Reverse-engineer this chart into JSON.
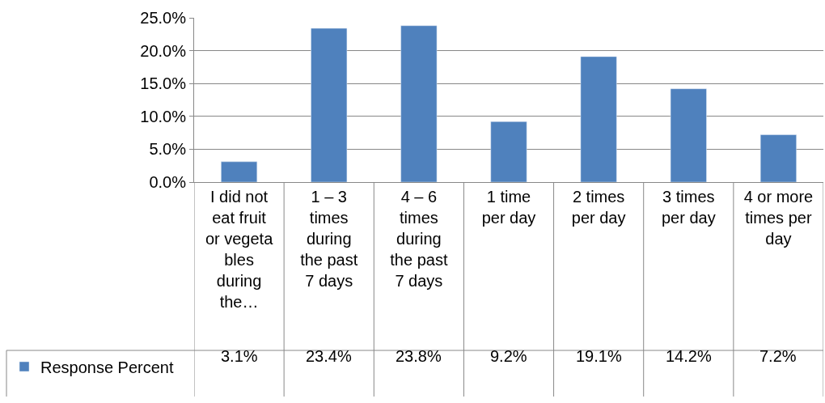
{
  "chart_data": {
    "type": "bar",
    "categories": [
      "I did not eat fruit or vegetables during the…",
      "1 – 3 times during the past 7 days",
      "4 – 6 times during the past 7 days",
      "1 time per day",
      "2 times per day",
      "3 times per day",
      "4 or more times per day"
    ],
    "series": [
      {
        "name": "Response Percent",
        "color": "#4f81bd",
        "values": [
          3.1,
          23.4,
          23.8,
          9.2,
          19.1,
          14.2,
          7.2
        ],
        "value_labels": [
          "3.1%",
          "23.4%",
          "23.8%",
          "9.2%",
          "19.1%",
          "14.2%",
          "7.2%"
        ]
      }
    ],
    "ylim": [
      0,
      25
    ],
    "yticks": [
      {
        "value": 0,
        "label": "0.0%"
      },
      {
        "value": 5,
        "label": "5.0%"
      },
      {
        "value": 10,
        "label": "10.0%"
      },
      {
        "value": 15,
        "label": "15.0%"
      },
      {
        "value": 20,
        "label": "20.0%"
      },
      {
        "value": 25,
        "label": "25.0%"
      }
    ],
    "grid": "y",
    "legend": "bottom left"
  }
}
